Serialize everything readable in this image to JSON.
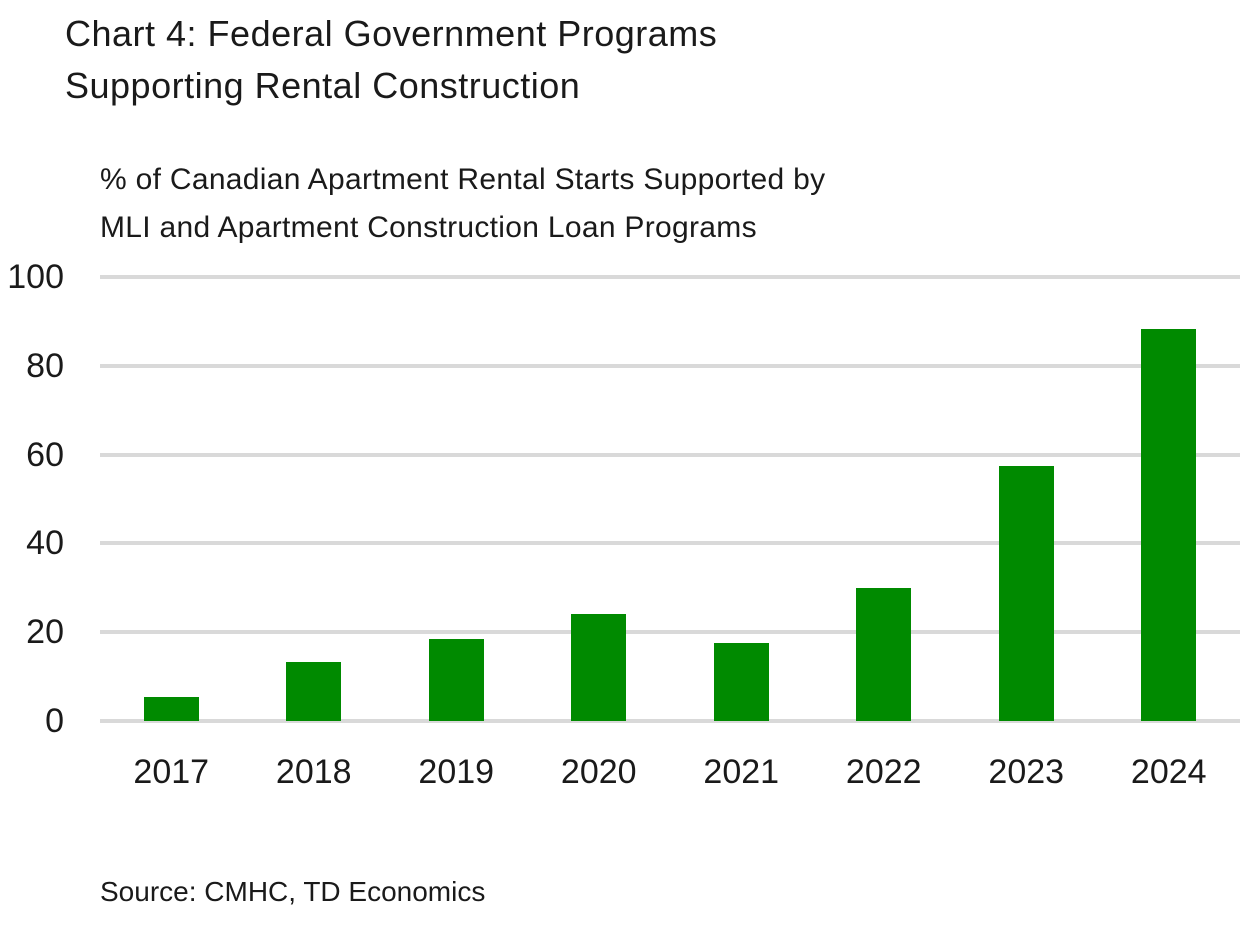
{
  "chart": {
    "title": "Chart 4: Federal Government Programs\nSupporting Rental Construction",
    "subtitle": "% of Canadian Apartment Rental Starts Supported by\nMLI and Apartment Construction Loan Programs",
    "source": "Source: CMHC, TD Economics"
  },
  "chart_data": {
    "type": "bar",
    "title": "Chart 4: Federal Government Programs Supporting Rental Construction",
    "subtitle": "% of Canadian Apartment Rental Starts Supported by MLI and Apartment Construction Loan Programs",
    "categories": [
      "2017",
      "2018",
      "2019",
      "2020",
      "2021",
      "2022",
      "2023",
      "2024"
    ],
    "values": [
      5.4,
      13.4,
      18.4,
      24.2,
      17.6,
      30.0,
      57.5,
      88.4
    ],
    "xlabel": "",
    "ylabel": "",
    "ylim": [
      0,
      100
    ],
    "yticks": [
      0,
      20,
      40,
      60,
      80,
      100
    ],
    "grid": true,
    "legend": false,
    "bar_color": "#008A00",
    "gridline_color": "#D9D9D9",
    "text_color": "#1A1A1A",
    "source": "Source: CMHC, TD Economics"
  }
}
